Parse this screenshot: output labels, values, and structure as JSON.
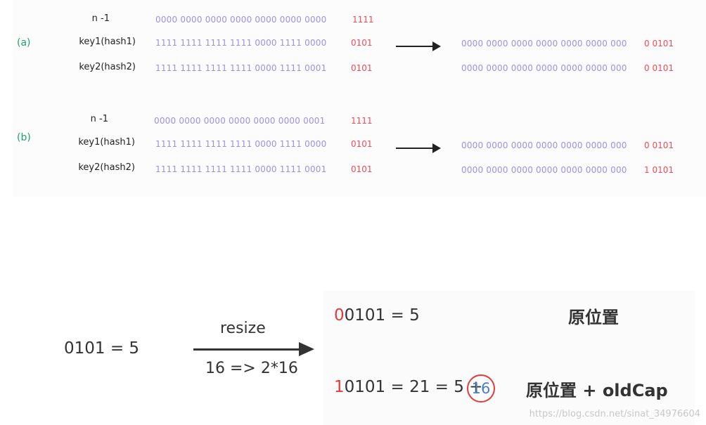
{
  "case_a": {
    "label": "(a)",
    "rows": [
      {
        "name": "n -1",
        "blue": "0000 0000 0000 0000 0000 0000 0000",
        "red": "1111"
      },
      {
        "name": "key1(hash1)",
        "blue": "1111 1111 1111 1111 0000 1111 0000",
        "red": "0101"
      },
      {
        "name": "key2(hash2)",
        "blue": "1111 1111 1111 1111 0000 1111 0001",
        "red": "0101"
      }
    ],
    "results": [
      {
        "blue": "0000 0000 0000 0000 0000 0000 000",
        "red": "0  0101"
      },
      {
        "blue": "0000 0000 0000 0000 0000 0000 000",
        "red": "0  0101"
      }
    ]
  },
  "case_b": {
    "label": "(b)",
    "rows": [
      {
        "name": "n -1",
        "blue": "0000 0000 0000 0000 0000 0000 0001",
        "red": "1111"
      },
      {
        "name": "key1(hash1)",
        "blue": "1111 1111 1111 1111 0000 1111 0000",
        "red": "0101"
      },
      {
        "name": "key2(hash2)",
        "blue": "1111 1111 1111 1111 0000 1111 0001",
        "red": "0101"
      }
    ],
    "results": [
      {
        "blue": "0000 0000 0000 0000 0000 0000 000",
        "red": "0  0101"
      },
      {
        "blue": "0000 0000 0000 0000 0000 0000 000",
        "red": "1  0101"
      }
    ]
  },
  "resize": {
    "left_expr": "0101 = 5",
    "arrow_top": "resize",
    "arrow_bottom": "16 => 2*16",
    "line1_prefix": "0",
    "line1_rest": "0101 =   5",
    "line1_tag": "原位置",
    "line2_prefix": "1",
    "line2_rest": "0101 = 21 = 5 +",
    "line2_circled": "16",
    "line2_tag": "原位置 + oldCap"
  },
  "watermark": "https://blog.csdn.net/sinat_34976604"
}
